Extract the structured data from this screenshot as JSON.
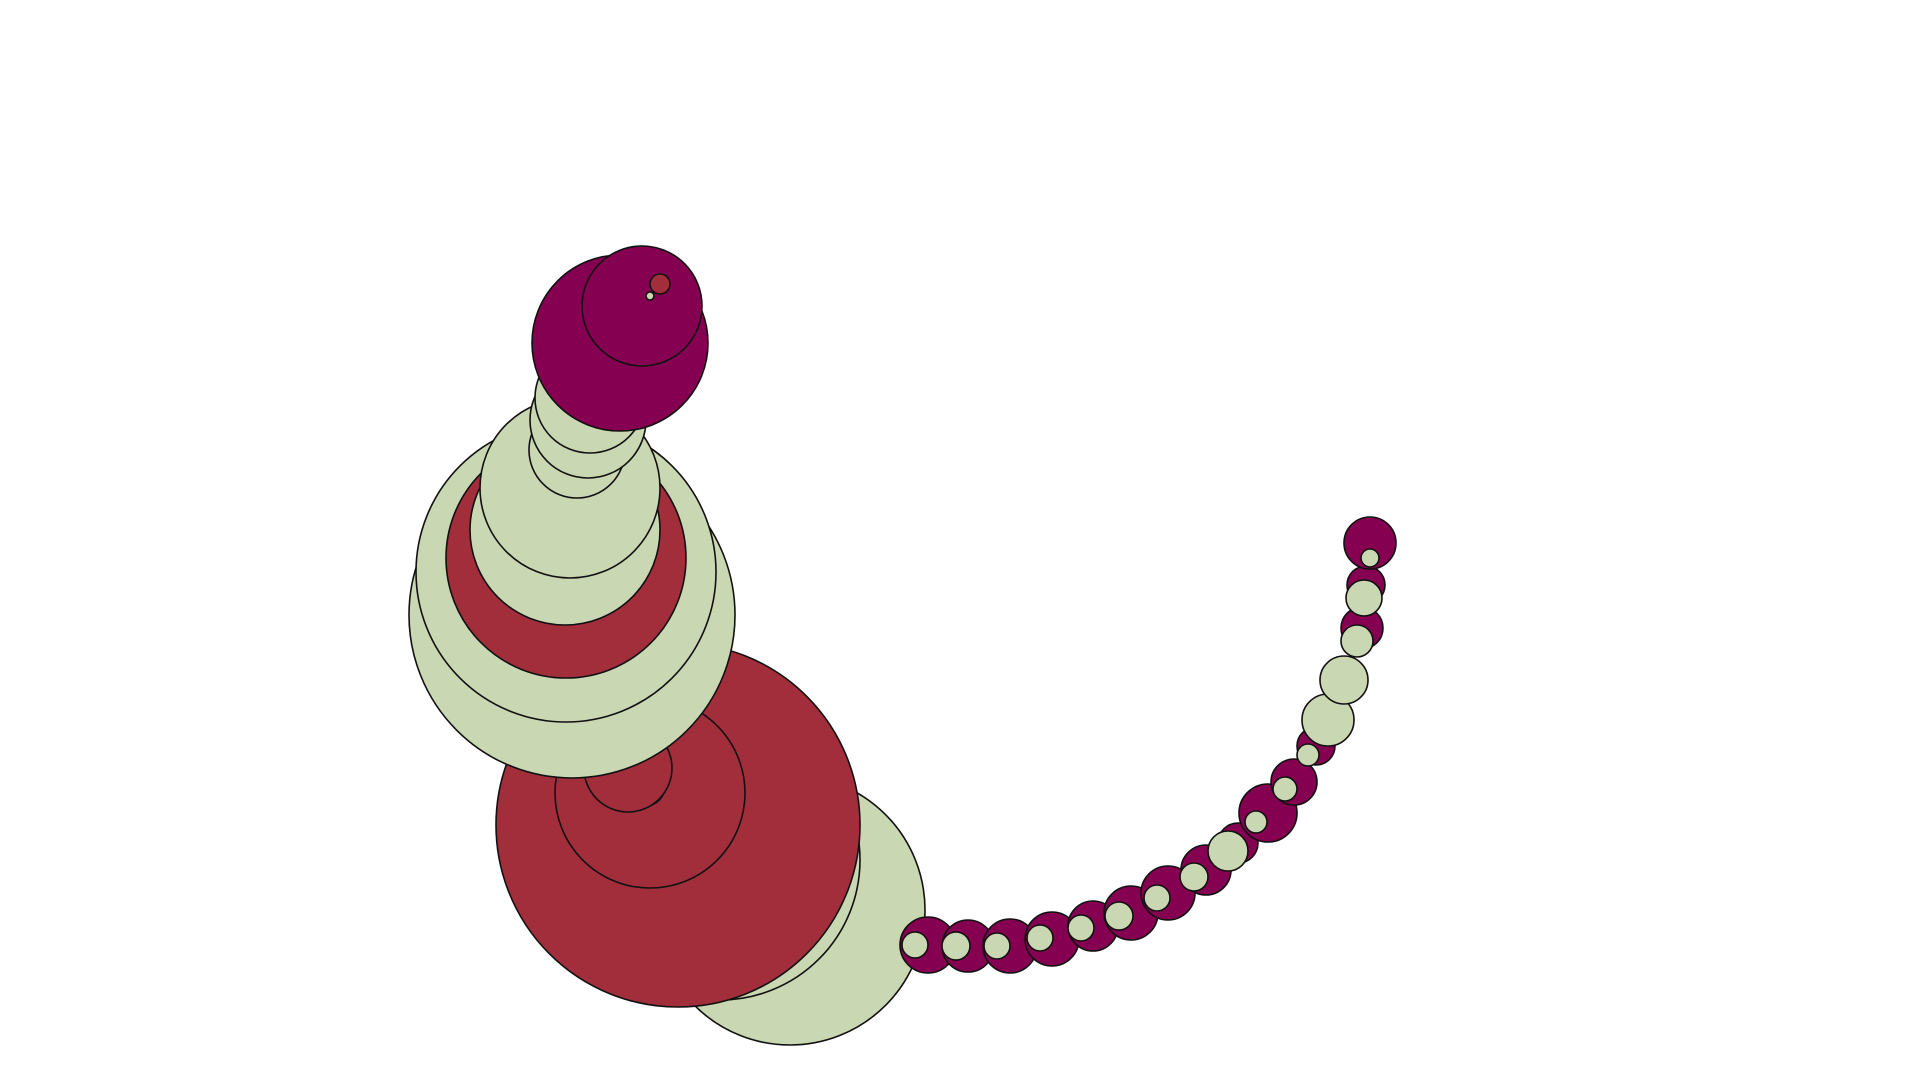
{
  "colors": {
    "background": "#ffffff",
    "outline": "#111111",
    "magenta": "#850051",
    "sage": "#c9d7b2",
    "crimson": "#a22e3b"
  }
}
